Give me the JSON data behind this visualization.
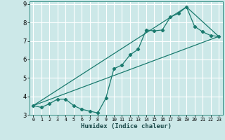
{
  "xlabel": "Humidex (Indice chaleur)",
  "xlim": [
    -0.5,
    23.5
  ],
  "ylim": [
    3,
    9.15
  ],
  "xticks": [
    0,
    1,
    2,
    3,
    4,
    5,
    6,
    7,
    8,
    9,
    10,
    11,
    12,
    13,
    14,
    15,
    16,
    17,
    18,
    19,
    20,
    21,
    22,
    23
  ],
  "yticks": [
    3,
    4,
    5,
    6,
    7,
    8,
    9
  ],
  "bg_color": "#cce8e8",
  "grid_color": "#ffffff",
  "line_color": "#1a7a6e",
  "line1_x": [
    0,
    1,
    2,
    3,
    4,
    5,
    6,
    7,
    8,
    9,
    10,
    11,
    12,
    13,
    14,
    15,
    16,
    17,
    18,
    19,
    20,
    21,
    22,
    23
  ],
  "line1_y": [
    3.5,
    3.4,
    3.6,
    3.85,
    3.85,
    3.5,
    3.3,
    3.2,
    3.1,
    3.9,
    5.5,
    5.7,
    6.25,
    6.55,
    7.6,
    7.55,
    7.6,
    8.3,
    8.5,
    8.85,
    7.8,
    7.5,
    7.3,
    7.25
  ],
  "line2_x": [
    0,
    23
  ],
  "line2_y": [
    3.5,
    7.25
  ],
  "line3_x": [
    0,
    19,
    23
  ],
  "line3_y": [
    3.5,
    8.85,
    7.25
  ]
}
